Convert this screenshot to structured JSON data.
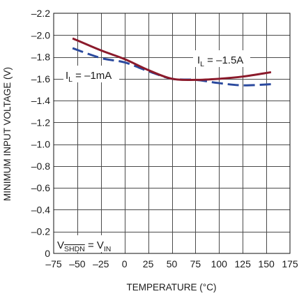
{
  "chart_data": {
    "type": "line",
    "title": "",
    "xlabel": "TEMPERATURE (°C)",
    "ylabel": "MINIMUM INPUT VOLTAGE (V)",
    "xlim": [
      -75,
      175
    ],
    "ylim": [
      0,
      -2.2
    ],
    "y_axis_inverted": true,
    "grid": true,
    "legend": "none (series labeled directly on plot)",
    "x_ticks": [
      -75,
      -50,
      -25,
      0,
      25,
      50,
      75,
      100,
      125,
      150,
      175
    ],
    "x_tick_labels": [
      "–75",
      "–50",
      "–25",
      "0",
      "25",
      "50",
      "75",
      "100",
      "125",
      "150",
      "175"
    ],
    "y_ticks": [
      0,
      -0.2,
      -0.4,
      -0.6,
      -0.8,
      -1.0,
      -1.2,
      -1.4,
      -1.6,
      -1.8,
      -2.0,
      -2.2
    ],
    "y_tick_labels": [
      "0",
      "–0.2",
      "–0.4",
      "–0.6",
      "–0.8",
      "–1.0",
      "–1.2",
      "–1.4",
      "–1.6",
      "–1.8",
      "–2.0",
      "–2.2"
    ],
    "series": [
      {
        "name": "I_L = –1.5A",
        "style": "solid",
        "color": "#8b1a2b",
        "x": [
          -55,
          -25,
          0,
          25,
          50,
          75,
          100,
          125,
          155
        ],
        "y": [
          -1.97,
          -1.86,
          -1.78,
          -1.68,
          -1.6,
          -1.59,
          -1.6,
          -1.62,
          -1.66
        ]
      },
      {
        "name": "I_L = –1mA",
        "style": "dashed",
        "color": "#2b4a9e",
        "x": [
          -55,
          -25,
          0,
          25,
          50,
          75,
          100,
          125,
          155
        ],
        "y": [
          -1.88,
          -1.79,
          -1.75,
          -1.67,
          -1.6,
          -1.59,
          -1.56,
          -1.54,
          -1.55
        ]
      }
    ],
    "annotations": [
      {
        "main": "I",
        "sub": "L",
        "rest": " = –1.5A"
      },
      {
        "main": "I",
        "sub": "L",
        "rest": " = –1mA"
      },
      {
        "main": "V",
        "sub": "SHDN",
        "sub_overline": true,
        "mid": " = V",
        "sub2": "IN"
      }
    ]
  }
}
